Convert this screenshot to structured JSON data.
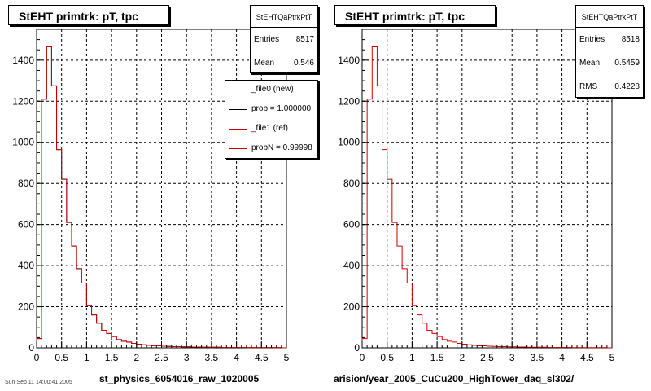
{
  "footer_text": "Sun Sep 11 14:00:41 2005",
  "panels": [
    {
      "title": "StEHT primtrk: pT, tpc",
      "stats": {
        "name": "StEHTQaPtrkPtT",
        "entries_label": "Entries",
        "entries_value": "8517",
        "mean_label": "Mean",
        "mean_value": "0.546"
      },
      "legend": [
        {
          "label": "_file0 (new)",
          "color": "#000000"
        },
        {
          "label": "prob = 1.000000",
          "color": "#000000"
        },
        {
          "label": "_file1 (ref)",
          "color": "#cc0000"
        },
        {
          "label": "probN = 0.99998",
          "color": "#cc0000"
        }
      ],
      "xtitle": "st_physics_6054016_raw_1020005"
    },
    {
      "title": "StEHT primtrk: pT, tpc",
      "stats": {
        "name": "StEHTQaPtrkPtT",
        "entries_label": "Entries",
        "entries_value": "8518",
        "mean_label": "Mean",
        "mean_value": "0.5459",
        "rms_label": "RMS",
        "rms_value": "0.4228"
      },
      "xtitle": "arision/year_2005_CuCu200_HighTower_daq_sl302/"
    }
  ],
  "chart_data": [
    {
      "type": "bar",
      "title": "StEHT primtrk: pT, tpc",
      "xlabel": "st_physics_6054016_raw_1020005",
      "ylabel": "",
      "xlim": [
        0,
        5
      ],
      "ylim": [
        0,
        1550
      ],
      "grid": true,
      "legend_placement": "top-right",
      "xticks": [
        "0",
        "0.5",
        "1",
        "1.5",
        "2",
        "2.5",
        "3",
        "3.5",
        "4",
        "4.5",
        "5"
      ],
      "yticks": [
        "0",
        "200",
        "400",
        "600",
        "800",
        "1000",
        "1200",
        "1400"
      ],
      "bin_edges": [
        0,
        0.1,
        0.2,
        0.3,
        0.4,
        0.5,
        0.6,
        0.7,
        0.8,
        0.9,
        1.0,
        1.1,
        1.2,
        1.3,
        1.4,
        1.5,
        1.6,
        1.7,
        1.8,
        1.9,
        2.0,
        2.1,
        2.2,
        2.3,
        2.4,
        2.5,
        2.6,
        2.7,
        2.8,
        2.9,
        3.0,
        3.1,
        3.2,
        3.3,
        3.4,
        3.5,
        3.6,
        3.7,
        3.8,
        3.9,
        4.0,
        4.1,
        4.2,
        4.3,
        4.4,
        4.5,
        4.6,
        4.7,
        4.8,
        4.9,
        5.0
      ],
      "series": [
        {
          "name": "_file0 (new)",
          "color": "#000000",
          "values": [
            45,
            1210,
            1465,
            1275,
            965,
            820,
            610,
            495,
            385,
            315,
            205,
            160,
            120,
            85,
            70,
            55,
            40,
            32,
            28,
            22,
            18,
            15,
            12,
            10,
            10,
            8,
            7,
            6,
            6,
            5,
            5,
            4,
            4,
            3,
            3,
            3,
            3,
            2,
            2,
            2,
            2,
            2,
            1,
            1,
            1,
            1,
            1,
            1,
            1,
            0
          ]
        },
        {
          "name": "_file1 (ref)",
          "color": "#cc0000",
          "values": [
            45,
            1210,
            1465,
            1275,
            965,
            820,
            610,
            495,
            385,
            315,
            205,
            160,
            120,
            85,
            70,
            55,
            40,
            32,
            28,
            22,
            18,
            15,
            12,
            10,
            10,
            8,
            7,
            6,
            6,
            5,
            5,
            4,
            4,
            3,
            3,
            3,
            3,
            2,
            2,
            2,
            2,
            2,
            1,
            1,
            1,
            1,
            1,
            1,
            1,
            0
          ]
        }
      ]
    },
    {
      "type": "bar",
      "title": "StEHT primtrk: pT, tpc",
      "xlabel": "arision/year_2005_CuCu200_HighTower_daq_sl302/",
      "ylabel": "",
      "xlim": [
        0,
        5
      ],
      "ylim": [
        0,
        1550
      ],
      "grid": true,
      "xticks": [
        "0",
        "0.5",
        "1",
        "1.5",
        "2",
        "2.5",
        "3",
        "3.5",
        "4",
        "4.5",
        "5"
      ],
      "yticks": [
        "0",
        "200",
        "400",
        "600",
        "800",
        "1000",
        "1200",
        "1400"
      ],
      "bin_edges": [
        0,
        0.1,
        0.2,
        0.3,
        0.4,
        0.5,
        0.6,
        0.7,
        0.8,
        0.9,
        1.0,
        1.1,
        1.2,
        1.3,
        1.4,
        1.5,
        1.6,
        1.7,
        1.8,
        1.9,
        2.0,
        2.1,
        2.2,
        2.3,
        2.4,
        2.5,
        2.6,
        2.7,
        2.8,
        2.9,
        3.0,
        3.1,
        3.2,
        3.3,
        3.4,
        3.5,
        3.6,
        3.7,
        3.8,
        3.9,
        4.0,
        4.1,
        4.2,
        4.3,
        4.4,
        4.5,
        4.6,
        4.7,
        4.8,
        4.9,
        5.0
      ],
      "series": [
        {
          "color": "#cc0000",
          "values": [
            45,
            1210,
            1465,
            1275,
            965,
            820,
            610,
            495,
            385,
            315,
            205,
            160,
            120,
            85,
            70,
            55,
            40,
            32,
            28,
            22,
            18,
            15,
            12,
            10,
            10,
            8,
            7,
            6,
            6,
            5,
            5,
            4,
            4,
            3,
            3,
            3,
            3,
            2,
            2,
            2,
            2,
            2,
            1,
            1,
            1,
            1,
            1,
            1,
            1,
            0
          ]
        }
      ]
    }
  ]
}
